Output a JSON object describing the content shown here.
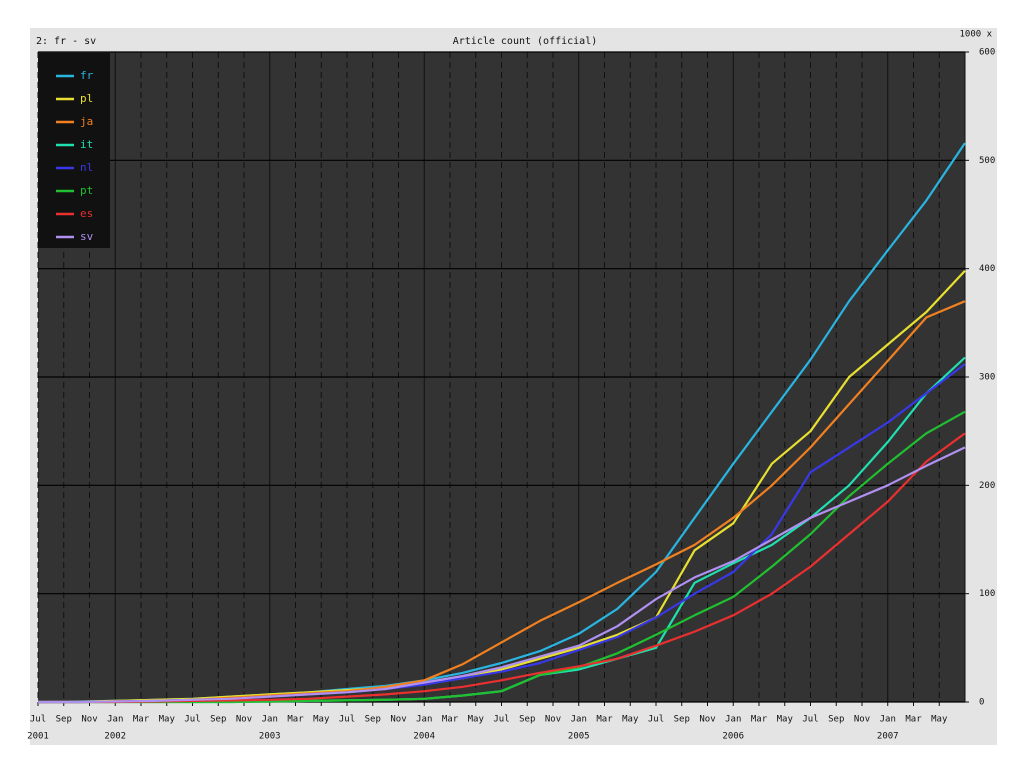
{
  "chart_data": {
    "type": "line",
    "title": "Article count (official)",
    "subtitle": "2: fr - sv",
    "y_unit_label": "1000 x",
    "x": [
      "2001-07",
      "2001-10",
      "2002-01",
      "2002-04",
      "2002-07",
      "2002-10",
      "2003-01",
      "2003-04",
      "2003-07",
      "2003-10",
      "2004-01",
      "2004-04",
      "2004-07",
      "2004-10",
      "2005-01",
      "2005-04",
      "2005-07",
      "2005-10",
      "2006-01",
      "2006-04",
      "2006-07",
      "2006-10",
      "2007-01",
      "2007-04",
      "2007-07"
    ],
    "series": [
      {
        "name": "fr",
        "color": "#2ab4e0",
        "values": [
          0,
          0.5,
          1,
          2,
          3,
          5,
          7,
          9,
          12,
          15,
          20,
          27,
          36,
          47,
          63,
          86,
          120,
          170,
          220,
          268,
          316,
          370,
          417,
          463,
          516
        ]
      },
      {
        "name": "pl",
        "color": "#e8e030",
        "values": [
          0,
          0.3,
          1,
          2,
          3,
          5,
          7,
          9,
          11,
          13,
          17,
          22,
          30,
          40,
          50,
          62,
          78,
          140,
          165,
          220,
          250,
          300,
          330,
          360,
          398
        ]
      },
      {
        "name": "ja",
        "color": "#f08020",
        "values": [
          0,
          0,
          0.5,
          1,
          2,
          4,
          6,
          8,
          10,
          14,
          20,
          35,
          55,
          75,
          92,
          110,
          127,
          145,
          170,
          200,
          235,
          275,
          315,
          355,
          370
        ]
      },
      {
        "name": "it",
        "color": "#20e0b0",
        "values": [
          0,
          0,
          0,
          0,
          0,
          0,
          0.5,
          1,
          1.5,
          2,
          3,
          6,
          10,
          25,
          30,
          40,
          50,
          110,
          128,
          145,
          170,
          200,
          240,
          285,
          318
        ]
      },
      {
        "name": "nl",
        "color": "#3838e8",
        "values": [
          0,
          0,
          0.5,
          1,
          2,
          3,
          5,
          7,
          9,
          12,
          16,
          22,
          28,
          36,
          48,
          60,
          78,
          100,
          120,
          155,
          212,
          235,
          258,
          285,
          312
        ]
      },
      {
        "name": "pt",
        "color": "#20c030",
        "values": [
          0,
          0,
          0,
          0,
          0,
          0,
          0.5,
          1,
          1.5,
          2,
          3,
          6,
          10,
          25,
          32,
          45,
          62,
          80,
          97,
          125,
          155,
          190,
          220,
          248,
          268
        ]
      },
      {
        "name": "es",
        "color": "#e83030",
        "values": [
          0,
          0,
          0,
          0.5,
          1,
          1.5,
          2,
          3,
          5,
          7,
          10,
          14,
          20,
          27,
          33,
          40,
          52,
          65,
          80,
          100,
          125,
          155,
          185,
          222,
          248
        ]
      },
      {
        "name": "sv",
        "color": "#b090f0",
        "values": [
          0,
          0,
          0.5,
          1,
          2,
          3,
          5,
          7,
          9,
          12,
          18,
          24,
          32,
          42,
          52,
          70,
          95,
          115,
          130,
          150,
          170,
          185,
          200,
          218,
          235
        ]
      }
    ],
    "xlim": [
      "2001-07",
      "2007-07"
    ],
    "xticks": [
      {
        "value": "2001-07",
        "label": "Jul"
      },
      {
        "value": "2001-09",
        "label": "Sep"
      },
      {
        "value": "2001-11",
        "label": "Nov"
      },
      {
        "value": "2002-01",
        "label": "Jan"
      },
      {
        "value": "2002-03",
        "label": "Mar"
      },
      {
        "value": "2002-05",
        "label": "May"
      },
      {
        "value": "2002-07",
        "label": "Jul"
      },
      {
        "value": "2002-09",
        "label": "Sep"
      },
      {
        "value": "2002-11",
        "label": "Nov"
      },
      {
        "value": "2003-01",
        "label": "Jan"
      },
      {
        "value": "2003-03",
        "label": "Mar"
      },
      {
        "value": "2003-05",
        "label": "May"
      },
      {
        "value": "2003-07",
        "label": "Jul"
      },
      {
        "value": "2003-09",
        "label": "Sep"
      },
      {
        "value": "2003-11",
        "label": "Nov"
      },
      {
        "value": "2004-01",
        "label": "Jan"
      },
      {
        "value": "2004-03",
        "label": "Mar"
      },
      {
        "value": "2004-05",
        "label": "May"
      },
      {
        "value": "2004-07",
        "label": "Jul"
      },
      {
        "value": "2004-09",
        "label": "Sep"
      },
      {
        "value": "2004-11",
        "label": "Nov"
      },
      {
        "value": "2005-01",
        "label": "Jan"
      },
      {
        "value": "2005-03",
        "label": "Mar"
      },
      {
        "value": "2005-05",
        "label": "May"
      },
      {
        "value": "2005-07",
        "label": "Jul"
      },
      {
        "value": "2005-09",
        "label": "Sep"
      },
      {
        "value": "2005-11",
        "label": "Nov"
      },
      {
        "value": "2006-01",
        "label": "Jan"
      },
      {
        "value": "2006-03",
        "label": "Mar"
      },
      {
        "value": "2006-05",
        "label": "May"
      },
      {
        "value": "2006-07",
        "label": "Jul"
      },
      {
        "value": "2006-09",
        "label": "Sep"
      },
      {
        "value": "2006-11",
        "label": "Nov"
      },
      {
        "value": "2007-01",
        "label": "Jan"
      },
      {
        "value": "2007-03",
        "label": "Mar"
      },
      {
        "value": "2007-05",
        "label": "May"
      }
    ],
    "xyears": [
      {
        "value": "2001-07",
        "label": "2001"
      },
      {
        "value": "2002-01",
        "label": "2002"
      },
      {
        "value": "2003-01",
        "label": "2003"
      },
      {
        "value": "2004-01",
        "label": "2004"
      },
      {
        "value": "2005-01",
        "label": "2005"
      },
      {
        "value": "2006-01",
        "label": "2006"
      },
      {
        "value": "2007-01",
        "label": "2007"
      }
    ],
    "ylim": [
      0,
      600
    ],
    "yticks": [
      0,
      100,
      200,
      300,
      400,
      500,
      600
    ],
    "grid": true,
    "legend": "upper-left"
  }
}
